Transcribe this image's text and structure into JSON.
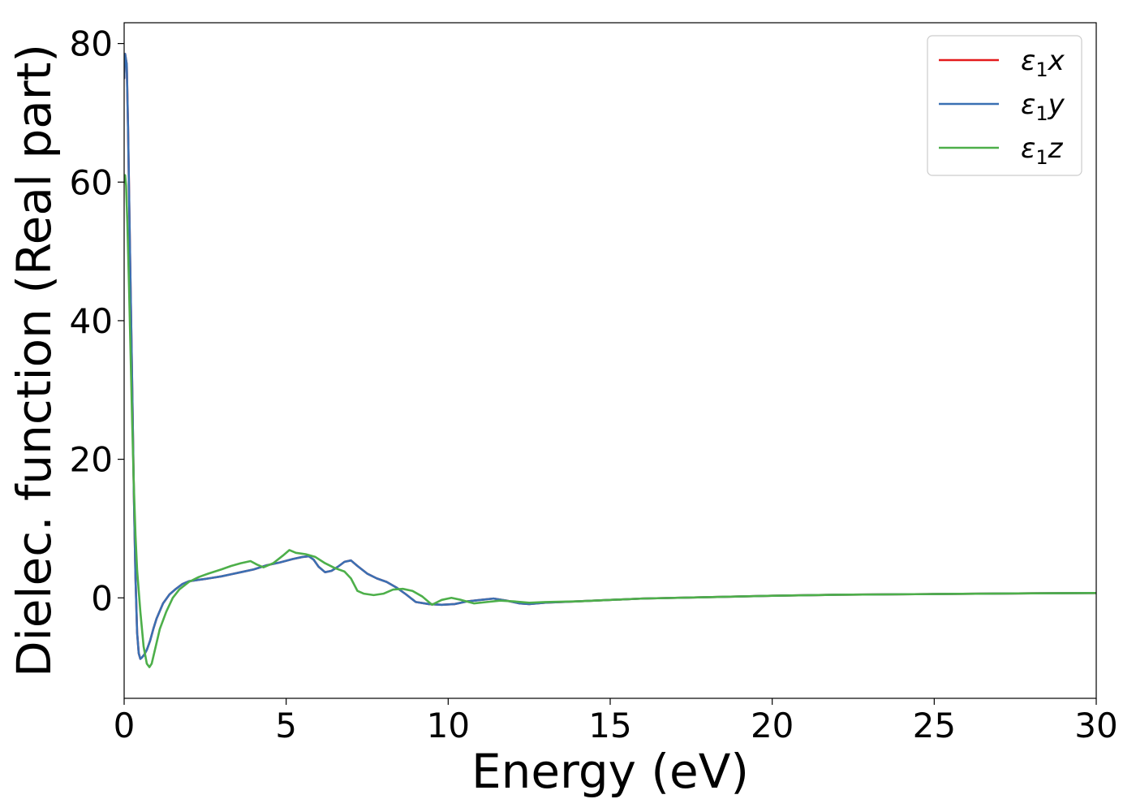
{
  "chart_data": {
    "type": "line",
    "xlabel": "Energy (eV)",
    "ylabel": "Dielec. function (Real part)",
    "xlim": [
      0,
      30
    ],
    "ylim": [
      -14.5,
      83
    ],
    "xticks": [
      0,
      5,
      10,
      15,
      20,
      25,
      30
    ],
    "xtick_labels": [
      "0",
      "5",
      "10",
      "15",
      "20",
      "25",
      "30"
    ],
    "yticks": [
      0,
      20,
      40,
      60,
      80
    ],
    "ytick_labels": [
      "0",
      "20",
      "40",
      "60",
      "80"
    ],
    "grid": false,
    "legend_position": "top-right",
    "series": [
      {
        "name": "ε1x",
        "legend_base": "ε",
        "legend_sub": "1",
        "legend_var": "x",
        "color": "#e41a1c",
        "x": [
          0,
          0.03,
          0.08,
          0.12,
          0.18,
          0.25,
          0.3,
          0.35,
          0.4,
          0.45,
          0.5,
          0.55,
          0.62,
          0.7,
          0.8,
          0.9,
          1.0,
          1.2,
          1.4,
          1.6,
          1.8,
          2.0,
          2.3,
          2.6,
          3.0,
          3.3,
          3.6,
          4.0,
          4.4,
          4.8,
          5.2,
          5.5,
          5.7,
          5.85,
          6.0,
          6.2,
          6.4,
          6.6,
          6.8,
          7.0,
          7.2,
          7.5,
          7.8,
          8.1,
          8.4,
          8.7,
          9.0,
          9.4,
          9.8,
          10.2,
          10.6,
          11.0,
          11.4,
          11.8,
          12.2,
          12.5,
          13.0,
          14.0,
          15.0,
          16.0,
          18.0,
          20.0,
          22.0,
          25.0,
          28.0,
          30.0
        ],
        "y": [
          75,
          78.5,
          77,
          68,
          50,
          30,
          15,
          3,
          -5,
          -8,
          -8.8,
          -8.6,
          -8.2,
          -7.5,
          -6.2,
          -4.5,
          -3,
          -0.8,
          0.5,
          1.3,
          2,
          2.4,
          2.6,
          2.8,
          3.1,
          3.4,
          3.7,
          4.1,
          4.7,
          5.1,
          5.6,
          5.9,
          6.0,
          5.5,
          4.5,
          3.7,
          3.9,
          4.5,
          5.2,
          5.4,
          4.6,
          3.5,
          2.8,
          2.3,
          1.5,
          0.5,
          -0.6,
          -0.9,
          -1.0,
          -0.9,
          -0.5,
          -0.3,
          -0.1,
          -0.4,
          -0.8,
          -0.9,
          -0.7,
          -0.5,
          -0.3,
          -0.1,
          0.1,
          0.3,
          0.45,
          0.55,
          0.65,
          0.7
        ]
      },
      {
        "name": "ε1y",
        "legend_base": "ε",
        "legend_sub": "1",
        "legend_var": "y",
        "color": "#3a70b3",
        "x": [
          0,
          0.03,
          0.08,
          0.12,
          0.18,
          0.25,
          0.3,
          0.35,
          0.4,
          0.45,
          0.5,
          0.55,
          0.62,
          0.7,
          0.8,
          0.9,
          1.0,
          1.2,
          1.4,
          1.6,
          1.8,
          2.0,
          2.3,
          2.6,
          3.0,
          3.3,
          3.6,
          4.0,
          4.4,
          4.8,
          5.2,
          5.5,
          5.7,
          5.85,
          6.0,
          6.2,
          6.4,
          6.6,
          6.8,
          7.0,
          7.2,
          7.5,
          7.8,
          8.1,
          8.4,
          8.7,
          9.0,
          9.4,
          9.8,
          10.2,
          10.6,
          11.0,
          11.4,
          11.8,
          12.2,
          12.5,
          13.0,
          14.0,
          15.0,
          16.0,
          18.0,
          20.0,
          22.0,
          25.0,
          28.0,
          30.0
        ],
        "y": [
          75,
          78.5,
          77,
          68,
          50,
          30,
          15,
          3,
          -5,
          -8,
          -8.8,
          -8.6,
          -8.2,
          -7.5,
          -6.2,
          -4.5,
          -3,
          -0.8,
          0.5,
          1.3,
          2,
          2.4,
          2.6,
          2.8,
          3.1,
          3.4,
          3.7,
          4.1,
          4.7,
          5.1,
          5.6,
          5.9,
          6.0,
          5.5,
          4.5,
          3.7,
          3.9,
          4.5,
          5.2,
          5.4,
          4.6,
          3.5,
          2.8,
          2.3,
          1.5,
          0.5,
          -0.6,
          -0.9,
          -1.0,
          -0.9,
          -0.5,
          -0.3,
          -0.1,
          -0.4,
          -0.8,
          -0.9,
          -0.7,
          -0.5,
          -0.3,
          -0.1,
          0.1,
          0.3,
          0.45,
          0.55,
          0.65,
          0.7
        ]
      },
      {
        "name": "ε1z",
        "legend_base": "ε",
        "legend_sub": "1",
        "legend_var": "z",
        "color": "#4daf4a",
        "x": [
          0,
          0.03,
          0.06,
          0.1,
          0.15,
          0.2,
          0.25,
          0.3,
          0.35,
          0.4,
          0.5,
          0.6,
          0.7,
          0.78,
          0.85,
          0.95,
          1.1,
          1.3,
          1.5,
          1.7,
          2.0,
          2.3,
          2.6,
          3.0,
          3.3,
          3.6,
          3.9,
          4.1,
          4.3,
          4.6,
          4.9,
          5.1,
          5.3,
          5.6,
          5.9,
          6.2,
          6.5,
          6.8,
          7.0,
          7.2,
          7.4,
          7.7,
          8.0,
          8.3,
          8.6,
          8.9,
          9.2,
          9.5,
          9.8,
          10.1,
          10.4,
          10.8,
          11.2,
          11.6,
          12.0,
          12.5,
          13.0,
          14.0,
          15.0,
          16.0,
          18.0,
          20.0,
          22.0,
          25.0,
          28.0,
          30.0
        ],
        "y": [
          60,
          61,
          59.5,
          54,
          45,
          35,
          25,
          16,
          9,
          4,
          -2,
          -7,
          -9.5,
          -10,
          -9.5,
          -7.5,
          -4.5,
          -2,
          0,
          1.2,
          2.3,
          3,
          3.5,
          4.1,
          4.6,
          5.0,
          5.3,
          4.8,
          4.4,
          5.0,
          6.1,
          6.9,
          6.5,
          6.3,
          5.9,
          5.0,
          4.3,
          3.8,
          2.8,
          1.0,
          0.6,
          0.4,
          0.6,
          1.2,
          1.3,
          1.0,
          0.2,
          -1.0,
          -0.3,
          0.0,
          -0.3,
          -0.8,
          -0.6,
          -0.4,
          -0.5,
          -0.7,
          -0.6,
          -0.5,
          -0.3,
          -0.1,
          0.1,
          0.3,
          0.45,
          0.55,
          0.65,
          0.7
        ]
      }
    ]
  }
}
